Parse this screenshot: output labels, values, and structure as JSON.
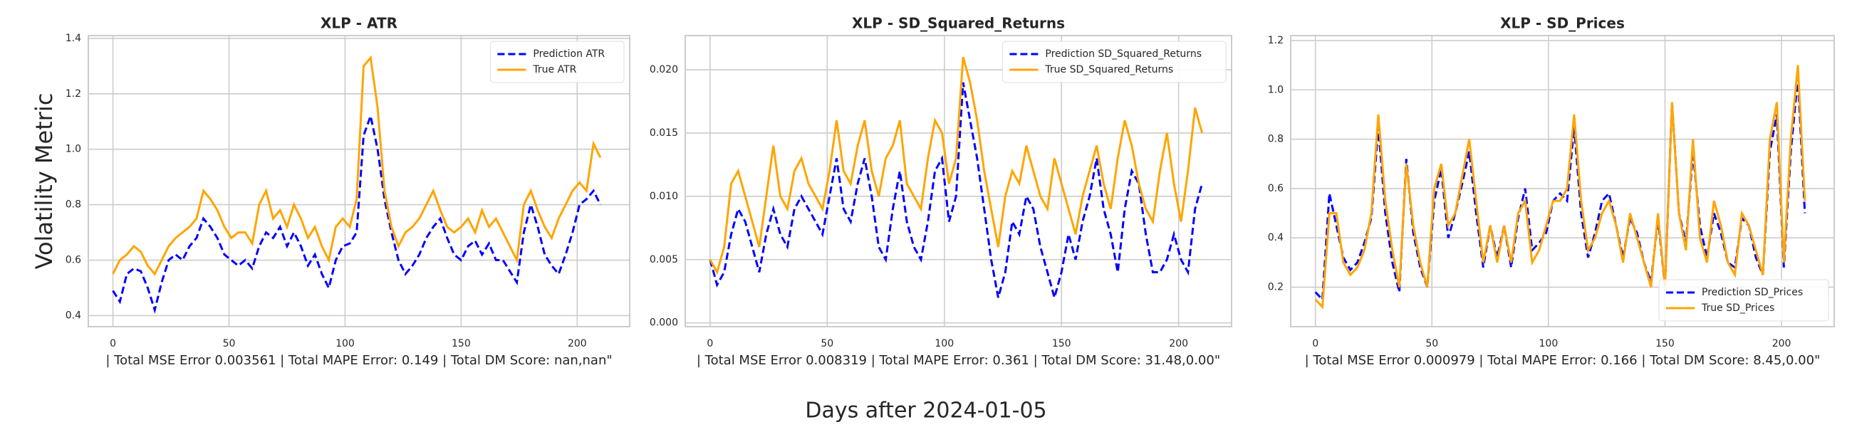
{
  "title": "Days after 2024-01-05",
  "chart_data": [
    {
      "type": "line",
      "title": "XLP - ATR",
      "ylabel": "Volatility Metric",
      "xlabel": "| Total MSE Error 0.003561 | Total MAPE Error: 0.149 | Total DM Score: nan,nan\"",
      "x": [
        0,
        3,
        6,
        9,
        12,
        15,
        18,
        21,
        24,
        27,
        30,
        33,
        36,
        39,
        42,
        45,
        48,
        51,
        54,
        57,
        60,
        63,
        66,
        69,
        72,
        75,
        78,
        81,
        84,
        87,
        90,
        93,
        96,
        99,
        102,
        105,
        108,
        111,
        114,
        117,
        120,
        123,
        126,
        129,
        132,
        135,
        138,
        141,
        144,
        147,
        150,
        153,
        156,
        159,
        162,
        165,
        168,
        171,
        174,
        177,
        180,
        183,
        186,
        189,
        192,
        195,
        198,
        201,
        204,
        207,
        210
      ],
      "series": [
        {
          "name": "Prediction ATR",
          "color": "blue",
          "linestyle": "dashed",
          "values": [
            0.49,
            0.45,
            0.55,
            0.57,
            0.56,
            0.5,
            0.42,
            0.52,
            0.6,
            0.62,
            0.6,
            0.65,
            0.68,
            0.75,
            0.72,
            0.68,
            0.62,
            0.6,
            0.58,
            0.6,
            0.57,
            0.65,
            0.7,
            0.68,
            0.72,
            0.65,
            0.7,
            0.65,
            0.58,
            0.62,
            0.55,
            0.5,
            0.6,
            0.65,
            0.66,
            0.7,
            1.05,
            1.12,
            1.0,
            0.82,
            0.7,
            0.6,
            0.55,
            0.58,
            0.62,
            0.68,
            0.72,
            0.75,
            0.68,
            0.62,
            0.6,
            0.65,
            0.67,
            0.62,
            0.66,
            0.6,
            0.6,
            0.56,
            0.52,
            0.7,
            0.8,
            0.72,
            0.62,
            0.58,
            0.55,
            0.62,
            0.7,
            0.8,
            0.82,
            0.85,
            0.8
          ]
        },
        {
          "name": "True ATR",
          "color": "orange",
          "linestyle": "solid",
          "values": [
            0.55,
            0.6,
            0.62,
            0.65,
            0.63,
            0.58,
            0.55,
            0.6,
            0.65,
            0.68,
            0.7,
            0.72,
            0.75,
            0.85,
            0.82,
            0.78,
            0.72,
            0.68,
            0.7,
            0.7,
            0.66,
            0.8,
            0.85,
            0.75,
            0.78,
            0.72,
            0.8,
            0.75,
            0.68,
            0.72,
            0.65,
            0.6,
            0.72,
            0.75,
            0.72,
            0.82,
            1.3,
            1.33,
            1.15,
            0.85,
            0.72,
            0.65,
            0.7,
            0.72,
            0.75,
            0.8,
            0.85,
            0.78,
            0.72,
            0.7,
            0.72,
            0.75,
            0.7,
            0.78,
            0.72,
            0.75,
            0.7,
            0.65,
            0.6,
            0.8,
            0.85,
            0.78,
            0.72,
            0.68,
            0.75,
            0.8,
            0.85,
            0.88,
            0.85,
            1.02,
            0.97
          ]
        }
      ],
      "xlim": [
        -10.6,
        222.6
      ],
      "xticks": [
        0,
        50,
        100,
        150,
        200
      ],
      "ylim": [
        0.36,
        1.41
      ],
      "yticks": [
        0.4,
        0.6,
        0.8,
        {
          "value": 1.0,
          "label": "1.0"
        },
        1.2,
        1.4
      ],
      "grid": true,
      "legend": "upper right"
    },
    {
      "type": "line",
      "title": "XLP - SD_Squared_Returns",
      "xlabel": "| Total MSE Error 0.008319 | Total MAPE Error: 0.361 | Total DM Score: 31.48,0.00\"",
      "x": [
        0,
        3,
        6,
        9,
        12,
        15,
        18,
        21,
        24,
        27,
        30,
        33,
        36,
        39,
        42,
        45,
        48,
        51,
        54,
        57,
        60,
        63,
        66,
        69,
        72,
        75,
        78,
        81,
        84,
        87,
        90,
        93,
        96,
        99,
        102,
        105,
        108,
        111,
        114,
        117,
        120,
        123,
        126,
        129,
        132,
        135,
        138,
        141,
        144,
        147,
        150,
        153,
        156,
        159,
        162,
        165,
        168,
        171,
        174,
        177,
        180,
        183,
        186,
        189,
        192,
        195,
        198,
        201,
        204,
        207,
        210
      ],
      "series": [
        {
          "name": "Prediction SD_Squared_Returns",
          "color": "blue",
          "linestyle": "dashed",
          "values": [
            0.005,
            0.003,
            0.004,
            0.007,
            0.009,
            0.008,
            0.006,
            0.004,
            0.007,
            0.009,
            0.007,
            0.006,
            0.009,
            0.01,
            0.009,
            0.008,
            0.007,
            0.01,
            0.013,
            0.009,
            0.008,
            0.011,
            0.013,
            0.01,
            0.006,
            0.005,
            0.009,
            0.012,
            0.008,
            0.006,
            0.005,
            0.008,
            0.012,
            0.013,
            0.008,
            0.01,
            0.019,
            0.016,
            0.013,
            0.009,
            0.005,
            0.002,
            0.004,
            0.008,
            0.007,
            0.01,
            0.009,
            0.006,
            0.004,
            0.002,
            0.004,
            0.007,
            0.005,
            0.008,
            0.01,
            0.013,
            0.009,
            0.007,
            0.004,
            0.009,
            0.012,
            0.011,
            0.007,
            0.004,
            0.004,
            0.005,
            0.007,
            0.005,
            0.004,
            0.009,
            0.011
          ]
        },
        {
          "name": "True SD_Squared_Returns",
          "color": "orange",
          "linestyle": "solid",
          "values": [
            0.005,
            0.004,
            0.006,
            0.011,
            0.012,
            0.01,
            0.008,
            0.006,
            0.01,
            0.014,
            0.01,
            0.009,
            0.012,
            0.013,
            0.011,
            0.01,
            0.009,
            0.012,
            0.016,
            0.012,
            0.011,
            0.014,
            0.016,
            0.012,
            0.01,
            0.013,
            0.014,
            0.016,
            0.011,
            0.01,
            0.009,
            0.013,
            0.016,
            0.015,
            0.011,
            0.013,
            0.021,
            0.019,
            0.016,
            0.012,
            0.009,
            0.006,
            0.01,
            0.012,
            0.011,
            0.014,
            0.012,
            0.01,
            0.009,
            0.013,
            0.011,
            0.009,
            0.007,
            0.01,
            0.012,
            0.014,
            0.011,
            0.009,
            0.013,
            0.016,
            0.014,
            0.011,
            0.009,
            0.008,
            0.012,
            0.015,
            0.011,
            0.008,
            0.012,
            0.017,
            0.015
          ]
        }
      ],
      "xlim": [
        -10.6,
        222.6
      ],
      "xticks": [
        0,
        50,
        100,
        150,
        200
      ],
      "ylim": [
        -0.0003,
        0.0227
      ],
      "yticks": [
        {
          "value": 0,
          "label": "0.000"
        },
        {
          "value": 0.005,
          "label": "0.005"
        },
        {
          "value": 0.01,
          "label": "0.010"
        },
        {
          "value": 0.015,
          "label": "0.015"
        },
        {
          "value": 0.02,
          "label": "0.020"
        }
      ],
      "grid": true,
      "legend": "upper right"
    },
    {
      "type": "line",
      "title": "XLP - SD_Prices",
      "xlabel": "| Total MSE Error 0.000979 | Total MAPE Error: 0.166 | Total DM Score: 8.45,0.00\"",
      "x": [
        0,
        3,
        6,
        9,
        12,
        15,
        18,
        21,
        24,
        27,
        30,
        33,
        36,
        39,
        42,
        45,
        48,
        51,
        54,
        57,
        60,
        63,
        66,
        69,
        72,
        75,
        78,
        81,
        84,
        87,
        90,
        93,
        96,
        99,
        102,
        105,
        108,
        111,
        114,
        117,
        120,
        123,
        126,
        129,
        132,
        135,
        138,
        141,
        144,
        147,
        150,
        153,
        156,
        159,
        162,
        165,
        168,
        171,
        174,
        177,
        180,
        183,
        186,
        189,
        192,
        195,
        198,
        201,
        204,
        207,
        210
      ],
      "series": [
        {
          "name": "Prediction SD_Prices",
          "color": "blue",
          "linestyle": "dashed",
          "values": [
            0.18,
            0.15,
            0.58,
            0.45,
            0.32,
            0.27,
            0.3,
            0.38,
            0.48,
            0.85,
            0.5,
            0.3,
            0.18,
            0.72,
            0.42,
            0.28,
            0.2,
            0.55,
            0.68,
            0.4,
            0.5,
            0.62,
            0.75,
            0.5,
            0.28,
            0.45,
            0.32,
            0.45,
            0.28,
            0.48,
            0.6,
            0.35,
            0.38,
            0.42,
            0.55,
            0.58,
            0.55,
            0.85,
            0.5,
            0.32,
            0.42,
            0.55,
            0.58,
            0.45,
            0.32,
            0.48,
            0.42,
            0.3,
            0.22,
            0.48,
            0.2,
            0.95,
            0.5,
            0.38,
            0.75,
            0.45,
            0.32,
            0.5,
            0.42,
            0.3,
            0.28,
            0.48,
            0.45,
            0.32,
            0.25,
            0.75,
            0.9,
            0.28,
            0.75,
            1.05,
            0.5
          ]
        },
        {
          "name": "True SD_Prices",
          "color": "orange",
          "linestyle": "solid",
          "values": [
            0.15,
            0.12,
            0.5,
            0.5,
            0.3,
            0.25,
            0.28,
            0.35,
            0.5,
            0.9,
            0.55,
            0.35,
            0.2,
            0.7,
            0.45,
            0.3,
            0.2,
            0.6,
            0.7,
            0.45,
            0.5,
            0.65,
            0.8,
            0.55,
            0.3,
            0.45,
            0.3,
            0.45,
            0.3,
            0.5,
            0.55,
            0.3,
            0.35,
            0.45,
            0.55,
            0.55,
            0.6,
            0.9,
            0.55,
            0.35,
            0.4,
            0.5,
            0.55,
            0.45,
            0.3,
            0.5,
            0.4,
            0.3,
            0.2,
            0.5,
            0.2,
            0.95,
            0.5,
            0.35,
            0.8,
            0.4,
            0.3,
            0.55,
            0.45,
            0.3,
            0.25,
            0.5,
            0.45,
            0.35,
            0.25,
            0.8,
            0.95,
            0.3,
            0.8,
            1.1,
            0.55
          ]
        }
      ],
      "xlim": [
        -10.6,
        222.6
      ],
      "xticks": [
        0,
        50,
        100,
        150,
        200
      ],
      "ylim": [
        0.04,
        1.22
      ],
      "yticks": [
        0.2,
        0.4,
        0.6,
        0.8,
        {
          "value": 1.0,
          "label": "1.0"
        },
        1.2
      ],
      "grid": true,
      "legend": "lower right"
    }
  ]
}
